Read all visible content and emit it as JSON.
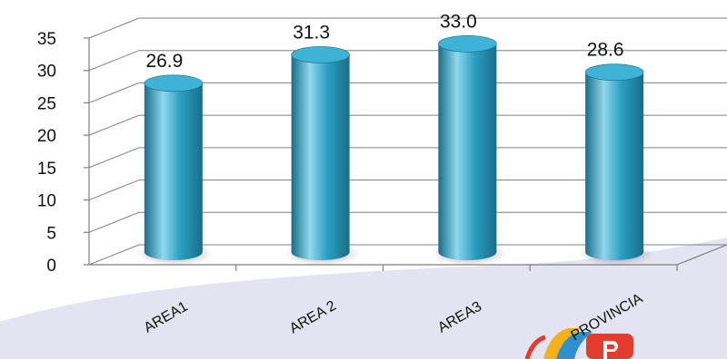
{
  "chart_data": {
    "type": "bar",
    "categories": [
      "AREA1",
      "AREA 2",
      "AREA3",
      "PROVINCIA"
    ],
    "values": [
      26.9,
      31.3,
      33.0,
      28.6
    ],
    "value_labels": [
      "26.9",
      "31.3",
      "33.0",
      "28.6"
    ],
    "yticks": [
      "0",
      "5",
      "10",
      "15",
      "20",
      "25",
      "30",
      "35"
    ],
    "ylim": [
      0,
      35
    ],
    "grid": true,
    "style": "3d-cylinder",
    "title": "",
    "xlabel": "",
    "ylabel": ""
  },
  "colors": {
    "bar": "#2a9fc2",
    "bar_highlight": "#8fd8ee",
    "bar_shadow": "#1a6d88",
    "bar_top": "#3fb3d6",
    "band": "#e3e3f2"
  },
  "logo": {
    "text": "mP",
    "icon": "logo-badge"
  }
}
